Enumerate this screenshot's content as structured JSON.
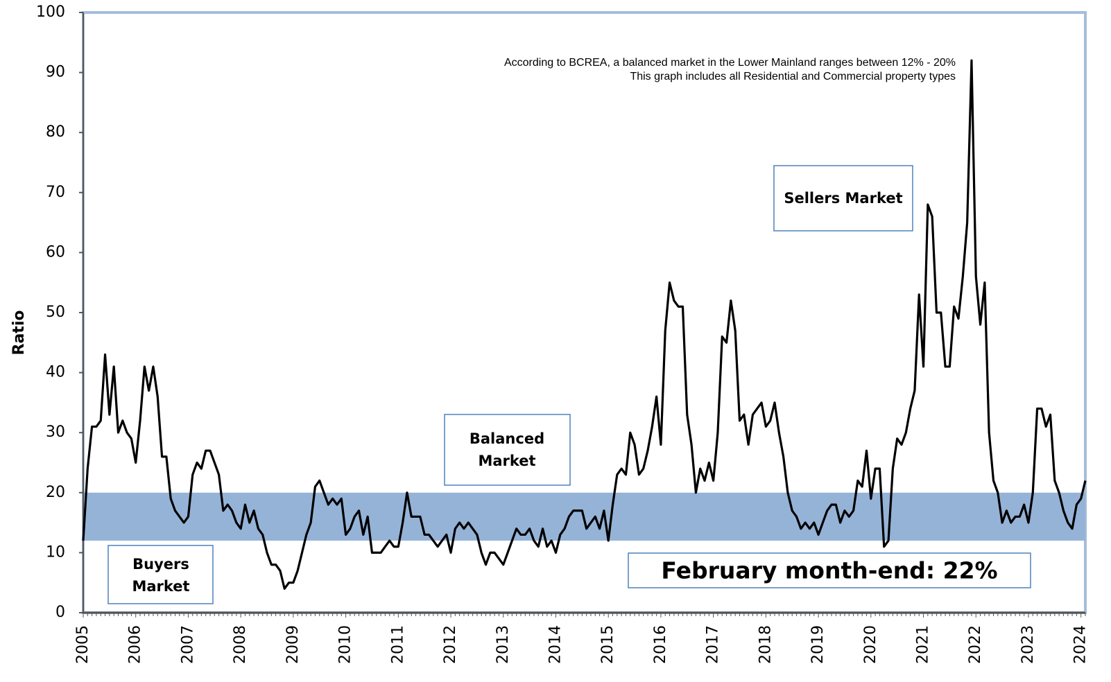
{
  "chart_data": {
    "type": "line",
    "y_label": "Ratio",
    "notes": [
      "According to BCREA, a balanced market in the Lower Mainland ranges between 12% - 20%",
      "This graph includes all Residential and Commercial property types"
    ],
    "sellers_label": "Sellers Market",
    "balanced_label": [
      "Balanced",
      "Market"
    ],
    "buyers_label": [
      "Buyers",
      "Market"
    ],
    "callout": "February month-end: 22%",
    "band": [
      12,
      20
    ],
    "band_color": "#95b3d7",
    "color": "#000000",
    "ylim": [
      0,
      100
    ],
    "yticks": [
      0,
      10,
      20,
      30,
      40,
      50,
      60,
      70,
      80,
      90,
      100
    ],
    "categories": [
      "2005",
      null,
      null,
      null,
      null,
      null,
      null,
      null,
      null,
      null,
      null,
      null,
      "2006",
      null,
      null,
      null,
      null,
      null,
      null,
      null,
      null,
      null,
      null,
      null,
      "2007",
      null,
      null,
      null,
      null,
      null,
      null,
      null,
      null,
      null,
      null,
      null,
      "2008",
      null,
      null,
      null,
      null,
      null,
      null,
      null,
      null,
      null,
      null,
      null,
      "2009",
      null,
      null,
      null,
      null,
      null,
      null,
      null,
      null,
      null,
      null,
      null,
      "2010",
      null,
      null,
      null,
      null,
      null,
      null,
      null,
      null,
      null,
      null,
      null,
      "2011",
      null,
      null,
      null,
      null,
      null,
      null,
      null,
      null,
      null,
      null,
      null,
      "2012",
      null,
      null,
      null,
      null,
      null,
      null,
      null,
      null,
      null,
      null,
      null,
      "2013",
      null,
      null,
      null,
      null,
      null,
      null,
      null,
      null,
      null,
      null,
      null,
      "2014",
      null,
      null,
      null,
      null,
      null,
      null,
      null,
      null,
      null,
      null,
      null,
      "2015",
      null,
      null,
      null,
      null,
      null,
      null,
      null,
      null,
      null,
      null,
      null,
      "2016",
      null,
      null,
      null,
      null,
      null,
      null,
      null,
      null,
      null,
      null,
      null,
      "2017",
      null,
      null,
      null,
      null,
      null,
      null,
      null,
      null,
      null,
      null,
      null,
      "2018",
      null,
      null,
      null,
      null,
      null,
      null,
      null,
      null,
      null,
      null,
      null,
      "2019",
      null,
      null,
      null,
      null,
      null,
      null,
      null,
      null,
      null,
      null,
      null,
      "2020",
      null,
      null,
      null,
      null,
      null,
      null,
      null,
      null,
      null,
      null,
      null,
      "2021",
      null,
      null,
      null,
      null,
      null,
      null,
      null,
      null,
      null,
      null,
      null,
      "2022",
      null,
      null,
      null,
      null,
      null,
      null,
      null,
      null,
      null,
      null,
      null,
      "2023",
      null,
      null,
      null,
      null,
      null,
      null,
      null,
      null,
      null,
      null,
      null,
      "2024",
      null
    ],
    "values": [
      12,
      24,
      31,
      31,
      32,
      43,
      33,
      41,
      30,
      32,
      30,
      29,
      25,
      32,
      41,
      37,
      41,
      36,
      26,
      26,
      19,
      17,
      16,
      15,
      16,
      23,
      25,
      24,
      27,
      27,
      25,
      23,
      17,
      18,
      17,
      15,
      14,
      18,
      15,
      17,
      14,
      13,
      10,
      8,
      8,
      7,
      4,
      5,
      5,
      7,
      10,
      13,
      15,
      21,
      22,
      20,
      18,
      19,
      18,
      19,
      13,
      14,
      16,
      17,
      13,
      16,
      10,
      10,
      10,
      11,
      12,
      11,
      11,
      15,
      20,
      16,
      16,
      16,
      13,
      13,
      12,
      11,
      12,
      13,
      10,
      14,
      15,
      14,
      15,
      14,
      13,
      10,
      8,
      10,
      10,
      9,
      8,
      10,
      12,
      14,
      13,
      13,
      14,
      12,
      11,
      14,
      11,
      12,
      10,
      13,
      14,
      16,
      17,
      17,
      17,
      14,
      15,
      16,
      14,
      17,
      12,
      18,
      23,
      24,
      23,
      30,
      28,
      23,
      24,
      27,
      31,
      36,
      28,
      47,
      55,
      52,
      51,
      51,
      33,
      28,
      20,
      24,
      22,
      25,
      22,
      30,
      46,
      45,
      52,
      47,
      32,
      33,
      28,
      33,
      34,
      35,
      31,
      32,
      35,
      30,
      26,
      20,
      17,
      16,
      14,
      15,
      14,
      15,
      13,
      15,
      17,
      18,
      18,
      15,
      17,
      16,
      17,
      22,
      21,
      27,
      19,
      24,
      24,
      11,
      12,
      24,
      29,
      28,
      30,
      34,
      37,
      53,
      41,
      68,
      66,
      50,
      50,
      41,
      41,
      51,
      49,
      56,
      65,
      92,
      56,
      48,
      55,
      30,
      22,
      20,
      15,
      17,
      15,
      16,
      16,
      18,
      15,
      20,
      34,
      34,
      31,
      33,
      22,
      20,
      17,
      15,
      14,
      18,
      19,
      22
    ]
  }
}
